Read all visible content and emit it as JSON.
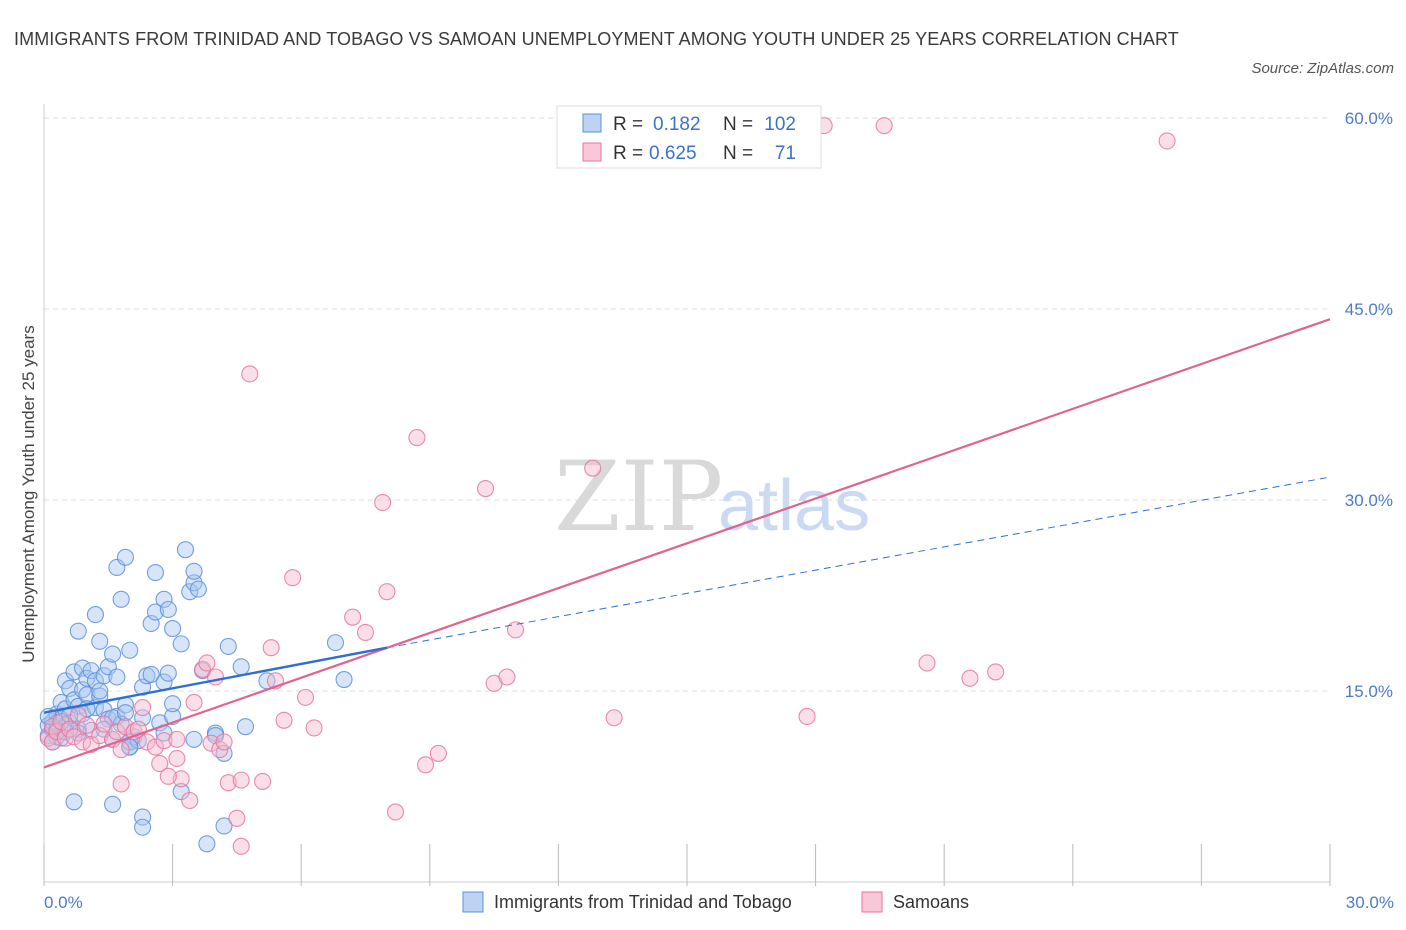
{
  "title": "IMMIGRANTS FROM TRINIDAD AND TOBAGO VS SAMOAN UNEMPLOYMENT AMONG YOUTH UNDER 25 YEARS CORRELATION CHART",
  "source": "Source: ZipAtlas.com",
  "colors": {
    "blue": "#5b8fdc",
    "blue_fill": "#a9c5f0",
    "pink": "#e8749e",
    "pink_fill": "#f5b8cd",
    "blue_line": "#2f6fd0",
    "pink_line": "#e0648f",
    "tick_label": "#4a7cc8",
    "grid": "#dddddd"
  },
  "legend": {
    "r_label": "R =",
    "n_label": "N =",
    "rows": [
      {
        "r": "0.182",
        "n": "102"
      },
      {
        "r": "0.625",
        "n": "71"
      }
    ]
  },
  "watermark": {
    "zip": "ZIP",
    "atlas": "atlas"
  },
  "chart_data": {
    "type": "scatter",
    "title": "IMMIGRANTS FROM TRINIDAD AND TOBAGO VS SAMOAN UNEMPLOYMENT AMONG YOUTH UNDER 25 YEARS CORRELATION CHART",
    "xlabel": "",
    "ylabel": "Unemployment Among Youth under 25 years",
    "xlim": [
      0,
      30
    ],
    "ylim": [
      0,
      60
    ],
    "x_tick_labels": [
      "0.0%",
      "30.0%"
    ],
    "y_ticks": [
      15,
      30,
      45,
      60
    ],
    "y_tick_labels": [
      "15.0%",
      "30.0%",
      "45.0%",
      "60.0%"
    ],
    "series": [
      {
        "name": "Immigrants from Trinidad and Tobago",
        "R": 0.182,
        "N": 102,
        "trend_solid": [
          [
            0,
            13.3
          ],
          [
            8.0,
            18.4
          ]
        ],
        "trend_dashed": [
          [
            8.0,
            18.4
          ],
          [
            30,
            31.8
          ]
        ],
        "points": [
          [
            0.1,
            11.5
          ],
          [
            0.1,
            12.3
          ],
          [
            0.2,
            11.0
          ],
          [
            0.2,
            12.6
          ],
          [
            0.3,
            12.0
          ],
          [
            0.3,
            13.2
          ],
          [
            0.3,
            11.4
          ],
          [
            0.4,
            12.8
          ],
          [
            0.4,
            14.1
          ],
          [
            0.5,
            12.3
          ],
          [
            0.5,
            15.8
          ],
          [
            0.5,
            13.6
          ],
          [
            0.6,
            12.5
          ],
          [
            0.6,
            15.2
          ],
          [
            0.7,
            16.5
          ],
          [
            0.7,
            14.3
          ],
          [
            0.8,
            13.8
          ],
          [
            0.8,
            12.0
          ],
          [
            0.8,
            19.7
          ],
          [
            0.9,
            16.8
          ],
          [
            0.9,
            15.1
          ],
          [
            0.9,
            13.2
          ],
          [
            1.0,
            16.0
          ],
          [
            1.0,
            14.7
          ],
          [
            1.1,
            11.9
          ],
          [
            1.1,
            16.6
          ],
          [
            1.2,
            21.0
          ],
          [
            1.2,
            15.8
          ],
          [
            1.2,
            13.7
          ],
          [
            1.3,
            14.6
          ],
          [
            1.3,
            18.9
          ],
          [
            1.3,
            15.0
          ],
          [
            1.4,
            13.5
          ],
          [
            1.4,
            16.2
          ],
          [
            1.5,
            16.9
          ],
          [
            1.5,
            12.8
          ],
          [
            1.6,
            17.9
          ],
          [
            1.6,
            11.2
          ],
          [
            1.7,
            16.1
          ],
          [
            1.7,
            13.0
          ],
          [
            1.7,
            24.7
          ],
          [
            1.8,
            22.2
          ],
          [
            1.8,
            12.4
          ],
          [
            1.9,
            25.5
          ],
          [
            1.9,
            13.9
          ],
          [
            2.0,
            18.2
          ],
          [
            2.0,
            10.6
          ],
          [
            2.1,
            11.4
          ],
          [
            2.3,
            15.3
          ],
          [
            2.3,
            12.9
          ],
          [
            2.4,
            16.2
          ],
          [
            2.5,
            20.3
          ],
          [
            2.6,
            21.2
          ],
          [
            2.6,
            24.3
          ],
          [
            2.7,
            12.5
          ],
          [
            2.8,
            15.7
          ],
          [
            2.8,
            22.2
          ],
          [
            2.9,
            21.4
          ],
          [
            2.9,
            16.4
          ],
          [
            3.0,
            19.9
          ],
          [
            3.0,
            13.0
          ],
          [
            3.2,
            18.7
          ],
          [
            3.3,
            26.1
          ],
          [
            3.4,
            22.8
          ],
          [
            3.5,
            23.5
          ],
          [
            3.6,
            23.0
          ],
          [
            3.7,
            16.6
          ],
          [
            3.5,
            24.4
          ],
          [
            4.0,
            11.7
          ],
          [
            4.0,
            11.5
          ],
          [
            4.3,
            18.5
          ],
          [
            4.6,
            16.9
          ],
          [
            4.7,
            12.2
          ],
          [
            5.2,
            15.8
          ],
          [
            6.8,
            18.8
          ],
          [
            7.0,
            15.9
          ],
          [
            0.7,
            6.3
          ],
          [
            1.6,
            6.1
          ],
          [
            2.3,
            5.1
          ],
          [
            2.3,
            4.3
          ],
          [
            3.8,
            3.0
          ],
          [
            4.2,
            4.4
          ],
          [
            4.2,
            10.1
          ],
          [
            3.5,
            11.2
          ],
          [
            3.2,
            7.1
          ],
          [
            2.0,
            11.0
          ],
          [
            1.6,
            12.9
          ],
          [
            0.3,
            12.5
          ],
          [
            0.4,
            11.3
          ],
          [
            0.6,
            13.1
          ],
          [
            0.2,
            12.0
          ],
          [
            0.1,
            13.0
          ],
          [
            1.0,
            13.6
          ],
          [
            2.8,
            11.7
          ],
          [
            1.4,
            12.0
          ],
          [
            2.2,
            11.1
          ],
          [
            0.8,
            11.7
          ],
          [
            3.0,
            14.0
          ],
          [
            1.9,
            13.3
          ],
          [
            2.5,
            16.3
          ],
          [
            0.5,
            11.8
          ],
          [
            2.0,
            10.6
          ]
        ]
      },
      {
        "name": "Samoans",
        "R": 0.625,
        "N": 71,
        "trend_solid": [
          [
            0,
            9.0
          ],
          [
            30,
            44.2
          ]
        ],
        "points": [
          [
            0.1,
            11.3
          ],
          [
            0.2,
            12.2
          ],
          [
            0.2,
            11.0
          ],
          [
            0.3,
            11.8
          ],
          [
            0.4,
            12.6
          ],
          [
            0.5,
            11.3
          ],
          [
            0.6,
            12.0
          ],
          [
            0.7,
            11.4
          ],
          [
            0.8,
            13.1
          ],
          [
            0.9,
            11.0
          ],
          [
            1.0,
            12.3
          ],
          [
            1.1,
            10.8
          ],
          [
            1.3,
            11.5
          ],
          [
            1.4,
            12.4
          ],
          [
            1.6,
            11.2
          ],
          [
            1.7,
            11.8
          ],
          [
            1.8,
            10.4
          ],
          [
            1.9,
            12.2
          ],
          [
            2.1,
            11.8
          ],
          [
            2.2,
            12.0
          ],
          [
            2.3,
            13.7
          ],
          [
            2.4,
            11.0
          ],
          [
            2.6,
            10.6
          ],
          [
            2.7,
            9.3
          ],
          [
            2.8,
            11.1
          ],
          [
            3.1,
            11.2
          ],
          [
            3.2,
            8.1
          ],
          [
            3.4,
            6.4
          ],
          [
            3.5,
            14.1
          ],
          [
            3.7,
            16.7
          ],
          [
            3.8,
            17.2
          ],
          [
            3.9,
            10.9
          ],
          [
            4.0,
            16.1
          ],
          [
            4.1,
            10.4
          ],
          [
            4.2,
            11.0
          ],
          [
            4.3,
            7.8
          ],
          [
            4.5,
            5.0
          ],
          [
            4.6,
            2.8
          ],
          [
            4.8,
            39.9
          ],
          [
            5.1,
            7.9
          ],
          [
            5.3,
            18.4
          ],
          [
            5.4,
            15.8
          ],
          [
            5.6,
            12.7
          ],
          [
            5.8,
            23.9
          ],
          [
            6.1,
            14.5
          ],
          [
            6.3,
            12.1
          ],
          [
            7.2,
            20.8
          ],
          [
            7.5,
            19.6
          ],
          [
            7.9,
            29.8
          ],
          [
            8.0,
            22.8
          ],
          [
            8.2,
            5.5
          ],
          [
            8.7,
            34.9
          ],
          [
            8.9,
            9.2
          ],
          [
            9.2,
            10.1
          ],
          [
            10.3,
            30.9
          ],
          [
            10.5,
            15.6
          ],
          [
            10.8,
            16.1
          ],
          [
            11.0,
            19.8
          ],
          [
            12.8,
            32.5
          ],
          [
            13.3,
            12.9
          ],
          [
            17.8,
            13.0
          ],
          [
            18.2,
            59.4
          ],
          [
            19.6,
            59.4
          ],
          [
            20.6,
            17.2
          ],
          [
            21.6,
            16.0
          ],
          [
            22.2,
            16.5
          ],
          [
            26.2,
            58.2
          ],
          [
            1.8,
            7.7
          ],
          [
            2.9,
            8.3
          ],
          [
            3.1,
            9.7
          ],
          [
            4.6,
            8.0
          ]
        ]
      }
    ],
    "legend": [
      "Immigrants from Trinidad and Tobago",
      "Samoans"
    ]
  }
}
